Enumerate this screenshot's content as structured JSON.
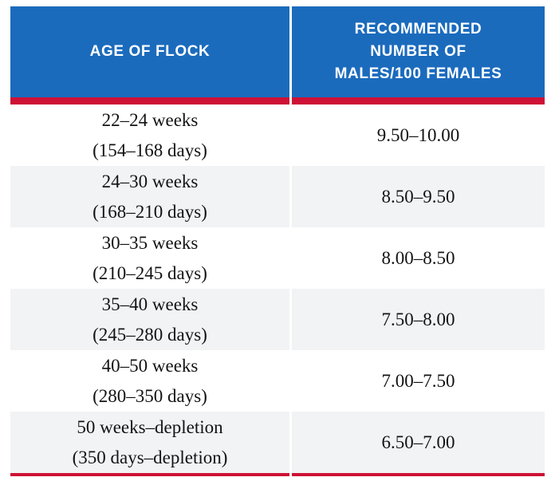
{
  "colors": {
    "header_bg": "#1b6bbd",
    "accent_red": "#ce1236",
    "row_alt_bg": "#f2f3f5",
    "header_text": "#ffffff",
    "body_text": "#131313"
  },
  "table": {
    "columns": [
      {
        "label": "AGE OF FLOCK"
      },
      {
        "label": "RECOMMENDED\nNUMBER OF\nMALES/100 FEMALES"
      }
    ],
    "rows": [
      {
        "age_weeks": "22–24 weeks",
        "age_days": "(154–168 days)",
        "males_per_100_females": "9.50–10.00"
      },
      {
        "age_weeks": "24–30 weeks",
        "age_days": "(168–210 days)",
        "males_per_100_females": "8.50–9.50"
      },
      {
        "age_weeks": "30–35 weeks",
        "age_days": "(210–245 days)",
        "males_per_100_females": "8.00–8.50"
      },
      {
        "age_weeks": "35–40 weeks",
        "age_days": "(245–280 days)",
        "males_per_100_females": "7.50–8.00"
      },
      {
        "age_weeks": "40–50 weeks",
        "age_days": "(280–350 days)",
        "males_per_100_females": "7.00–7.50"
      },
      {
        "age_weeks": "50 weeks–depletion",
        "age_days": "(350 days–depletion)",
        "males_per_100_females": "6.50–7.00"
      }
    ]
  }
}
